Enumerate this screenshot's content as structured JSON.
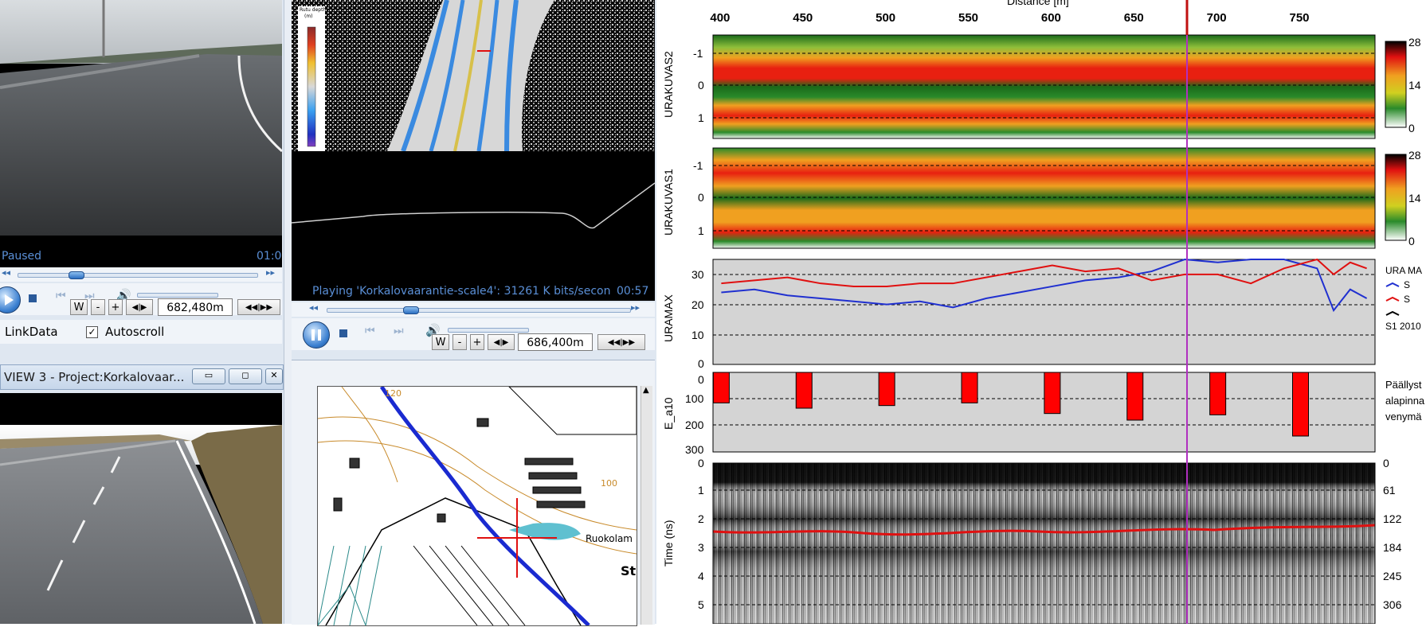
{
  "left_video_top": {
    "status": "Paused",
    "time": "01:0",
    "distance": "682,480m",
    "w_label": "W",
    "minus_label": "-",
    "plus_label": "+"
  },
  "left_options": {
    "link_label": "LinkData",
    "autoscroll_label": "Autoscroll",
    "autoscroll_checked": true
  },
  "view3": {
    "title": "VIEW 3 - Project:Korkalovaar..."
  },
  "center_video": {
    "legend_title": "Rutu depth",
    "legend_unit": "(m)",
    "status": "Playing 'Korkalovaarantie-scale4': 31261 K bits/secon",
    "time": "00:57",
    "distance": "686,400m",
    "w_label": "W",
    "minus_label": "-",
    "plus_label": "+"
  },
  "map": {
    "label_120": "120",
    "label_100": "100",
    "place_name": "Ruokolam",
    "label_st": "St"
  },
  "plot": {
    "x_title": "Distance [m]",
    "x_ticks": [
      "400",
      "450",
      "500",
      "550",
      "600",
      "650",
      "700",
      "750"
    ],
    "cursor_color": "#b030c0",
    "panel1": {
      "label": "URAKUVAS2",
      "ticks": [
        "-1",
        "0",
        "1"
      ],
      "colorbar": [
        "28",
        "14",
        "0"
      ]
    },
    "panel2": {
      "label": "URAKUVAS1",
      "ticks": [
        "-1",
        "0",
        "1"
      ],
      "colorbar": [
        "28",
        "14",
        "0"
      ]
    },
    "panel3": {
      "label": "URAMAX",
      "ticks": [
        "30",
        "20",
        "10",
        "0"
      ],
      "legend_title": "URA MA",
      "legend_s1": "S",
      "legend_s2": "S",
      "legend_note": "S1 2010"
    },
    "panel4": {
      "label": "E_a10",
      "ticks": [
        "0",
        "100",
        "200",
        "300"
      ],
      "note1": "Päällyst",
      "note2": "alapinna",
      "note3": "venymä"
    },
    "panel5": {
      "label": "Time (ns)",
      "ticks": [
        "0",
        "1",
        "2",
        "3",
        "4",
        "5"
      ],
      "right_ticks": [
        "0",
        "61",
        "122",
        "184",
        "245",
        "306"
      ]
    }
  },
  "chart_data": [
    {
      "type": "line",
      "title": "URAMAX",
      "xlabel": "Distance [m]",
      "ylabel": "URAMAX",
      "xlim": [
        395,
        795
      ],
      "ylim": [
        0,
        35
      ],
      "series": [
        {
          "name": "S1",
          "color": "#2030d0",
          "x": [
            400,
            420,
            440,
            460,
            480,
            500,
            520,
            540,
            560,
            580,
            600,
            620,
            640,
            660,
            680,
            700,
            720,
            740,
            760,
            770,
            780,
            790
          ],
          "values": [
            24,
            25,
            23,
            22,
            21,
            20,
            21,
            19,
            22,
            24,
            26,
            28,
            29,
            31,
            35,
            34,
            35,
            35,
            32,
            18,
            25,
            22
          ]
        },
        {
          "name": "S2",
          "color": "#e01010",
          "x": [
            400,
            420,
            440,
            460,
            480,
            500,
            520,
            540,
            560,
            580,
            600,
            620,
            640,
            660,
            680,
            700,
            720,
            740,
            760,
            770,
            780,
            790
          ],
          "values": [
            27,
            28,
            29,
            27,
            26,
            26,
            27,
            27,
            29,
            31,
            33,
            31,
            32,
            28,
            30,
            30,
            27,
            32,
            35,
            30,
            34,
            32
          ]
        }
      ]
    },
    {
      "type": "bar",
      "title": "E_a10",
      "ylabel": "E_a10",
      "ylim": [
        0,
        300
      ],
      "x": [
        400,
        450,
        500,
        550,
        600,
        650,
        700,
        750
      ],
      "values": [
        115,
        135,
        125,
        115,
        155,
        180,
        160,
        240
      ],
      "color": "#ff0000"
    }
  ]
}
